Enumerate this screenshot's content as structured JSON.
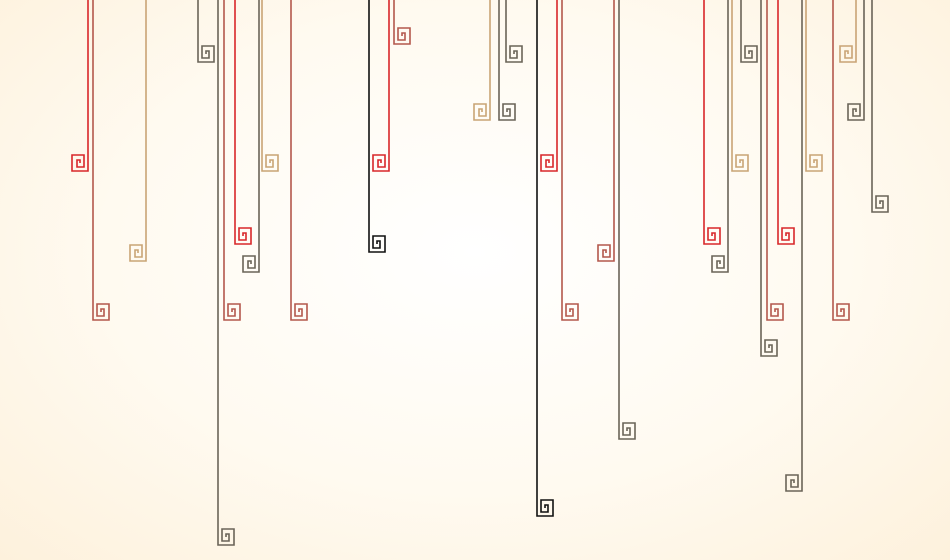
{
  "palette": {
    "red": "#d8272a",
    "rust": "#b4584c",
    "tan": "#c9a475",
    "grey": "#6a6458",
    "black": "#111111"
  },
  "motif": "greek-key-spiral"
}
